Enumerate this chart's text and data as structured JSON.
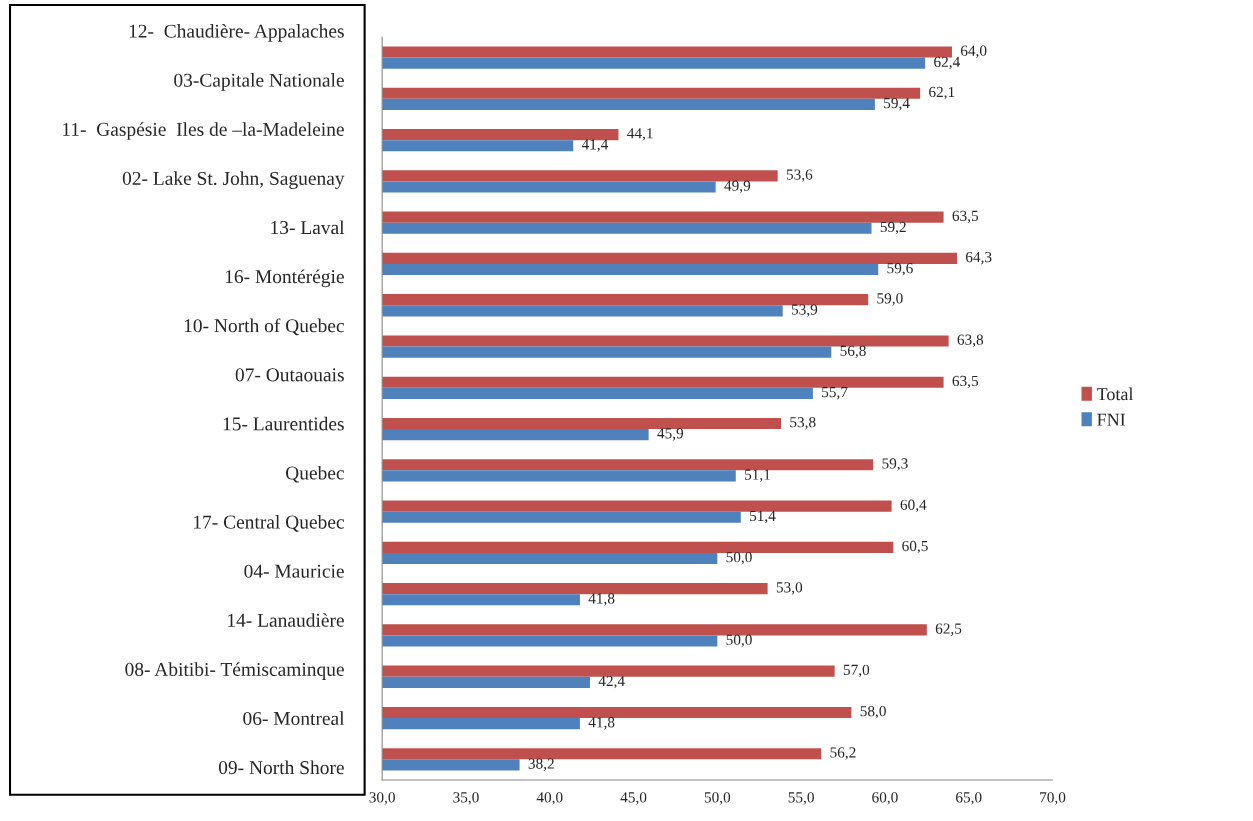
{
  "chart_data": {
    "type": "bar",
    "orientation": "horizontal",
    "categories": [
      null,
      null,
      null,
      null,
      null,
      null,
      null,
      null,
      null,
      null,
      null,
      null,
      null,
      null,
      null,
      null,
      null,
      null
    ],
    "series": [
      {
        "name": "Total",
        "color": "#c0504d",
        "values": [
          64.0,
          62.1,
          44.1,
          53.6,
          63.5,
          64.3,
          59.0,
          63.8,
          63.5,
          53.8,
          59.3,
          60.4,
          60.5,
          53.0,
          62.5,
          57.0,
          58.0,
          56.2
        ],
        "value_labels": [
          "64,0",
          "62,1",
          "44,1",
          "53,6",
          "63,5",
          "64,3",
          "59,0",
          "63,8",
          "63,5",
          "53,8",
          "59,3",
          "60,4",
          "60,5",
          "53,0",
          "62,5",
          "57,0",
          "58,0",
          "56,2"
        ]
      },
      {
        "name": "FNI",
        "color": "#4f81bd",
        "values": [
          62.4,
          59.4,
          41.4,
          49.9,
          59.2,
          59.6,
          53.9,
          56.8,
          55.7,
          45.9,
          51.1,
          51.4,
          50.0,
          41.8,
          50.0,
          42.4,
          41.8,
          38.2
        ],
        "value_labels": [
          "62,4",
          "59,4",
          "41,4",
          "49,9",
          "59,2",
          "59,6",
          "53,9",
          "56,8",
          "55,7",
          "45,9",
          "51,1",
          "51,4",
          "50,0",
          "41,8",
          "50,0",
          "42,4",
          "41,8",
          "38,2"
        ]
      }
    ],
    "xlim": [
      30,
      70
    ],
    "xticks": [
      {
        "value": 30,
        "label": "30,0"
      },
      {
        "value": 35,
        "label": "35,0"
      },
      {
        "value": 40,
        "label": "40,0"
      },
      {
        "value": 45,
        "label": "45,0"
      },
      {
        "value": 50,
        "label": "50,0"
      },
      {
        "value": 55,
        "label": "55,0"
      },
      {
        "value": 60,
        "label": "60,0"
      },
      {
        "value": 65,
        "label": "65,0"
      },
      {
        "value": 70,
        "label": "70,0"
      }
    ],
    "tick_labels": "x",
    "grid": false,
    "legend": "right",
    "annotations": [
      "12-  Chaudière- Appalaches",
      "03-Capitale Nationale",
      "11-  Gaspésie  Iles de –la-Madeleine",
      "02- Lake St. John, Saguenay",
      "13- Laval",
      "16- Montérégie",
      "10- North of Quebec",
      "07- Outaouais",
      "15- Laurentides",
      "Quebec",
      "17- Central Quebec",
      "04- Mauricie",
      "14- Lanaudière",
      "08- Abitibi- Témiscaminque",
      "06- Montreal",
      "09- North Shore"
    ]
  }
}
